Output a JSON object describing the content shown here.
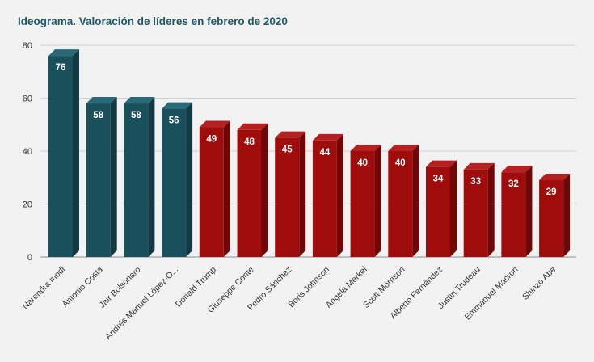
{
  "chart_data": {
    "type": "bar",
    "title": "Ideograma. Valoración de líderes en febrero de 2020",
    "xlabel": "",
    "ylabel": "",
    "ylim": [
      0,
      80
    ],
    "yticks": [
      0,
      20,
      40,
      60,
      80
    ],
    "grid": true,
    "categories": [
      "Narendra modi",
      "Antonio Costa",
      "Jair Bolsonaro",
      "Andrés Manuel López-O...",
      "Donald Trump",
      "Giuseppe Conte",
      "Pedro Sánchez",
      "Boris Johnson",
      "Angela Merkel",
      "Scott Morrison",
      "Alberto Fernández",
      "Justin Trudeau",
      "Emmanuel Macron",
      "Shinzo Abe"
    ],
    "values": [
      76,
      58,
      58,
      56,
      49,
      48,
      45,
      44,
      40,
      40,
      34,
      33,
      32,
      29
    ],
    "colors": {
      "teal_front": "#1a4f5c",
      "teal_side": "#123a44",
      "teal_top": "#2a6a78",
      "red_front": "#9e0c0c",
      "red_side": "#6e0707",
      "red_top": "#b52121"
    },
    "bar_color_groups": [
      "teal",
      "teal",
      "teal",
      "teal",
      "red",
      "red",
      "red",
      "red",
      "red",
      "red",
      "red",
      "red",
      "red",
      "red"
    ]
  }
}
